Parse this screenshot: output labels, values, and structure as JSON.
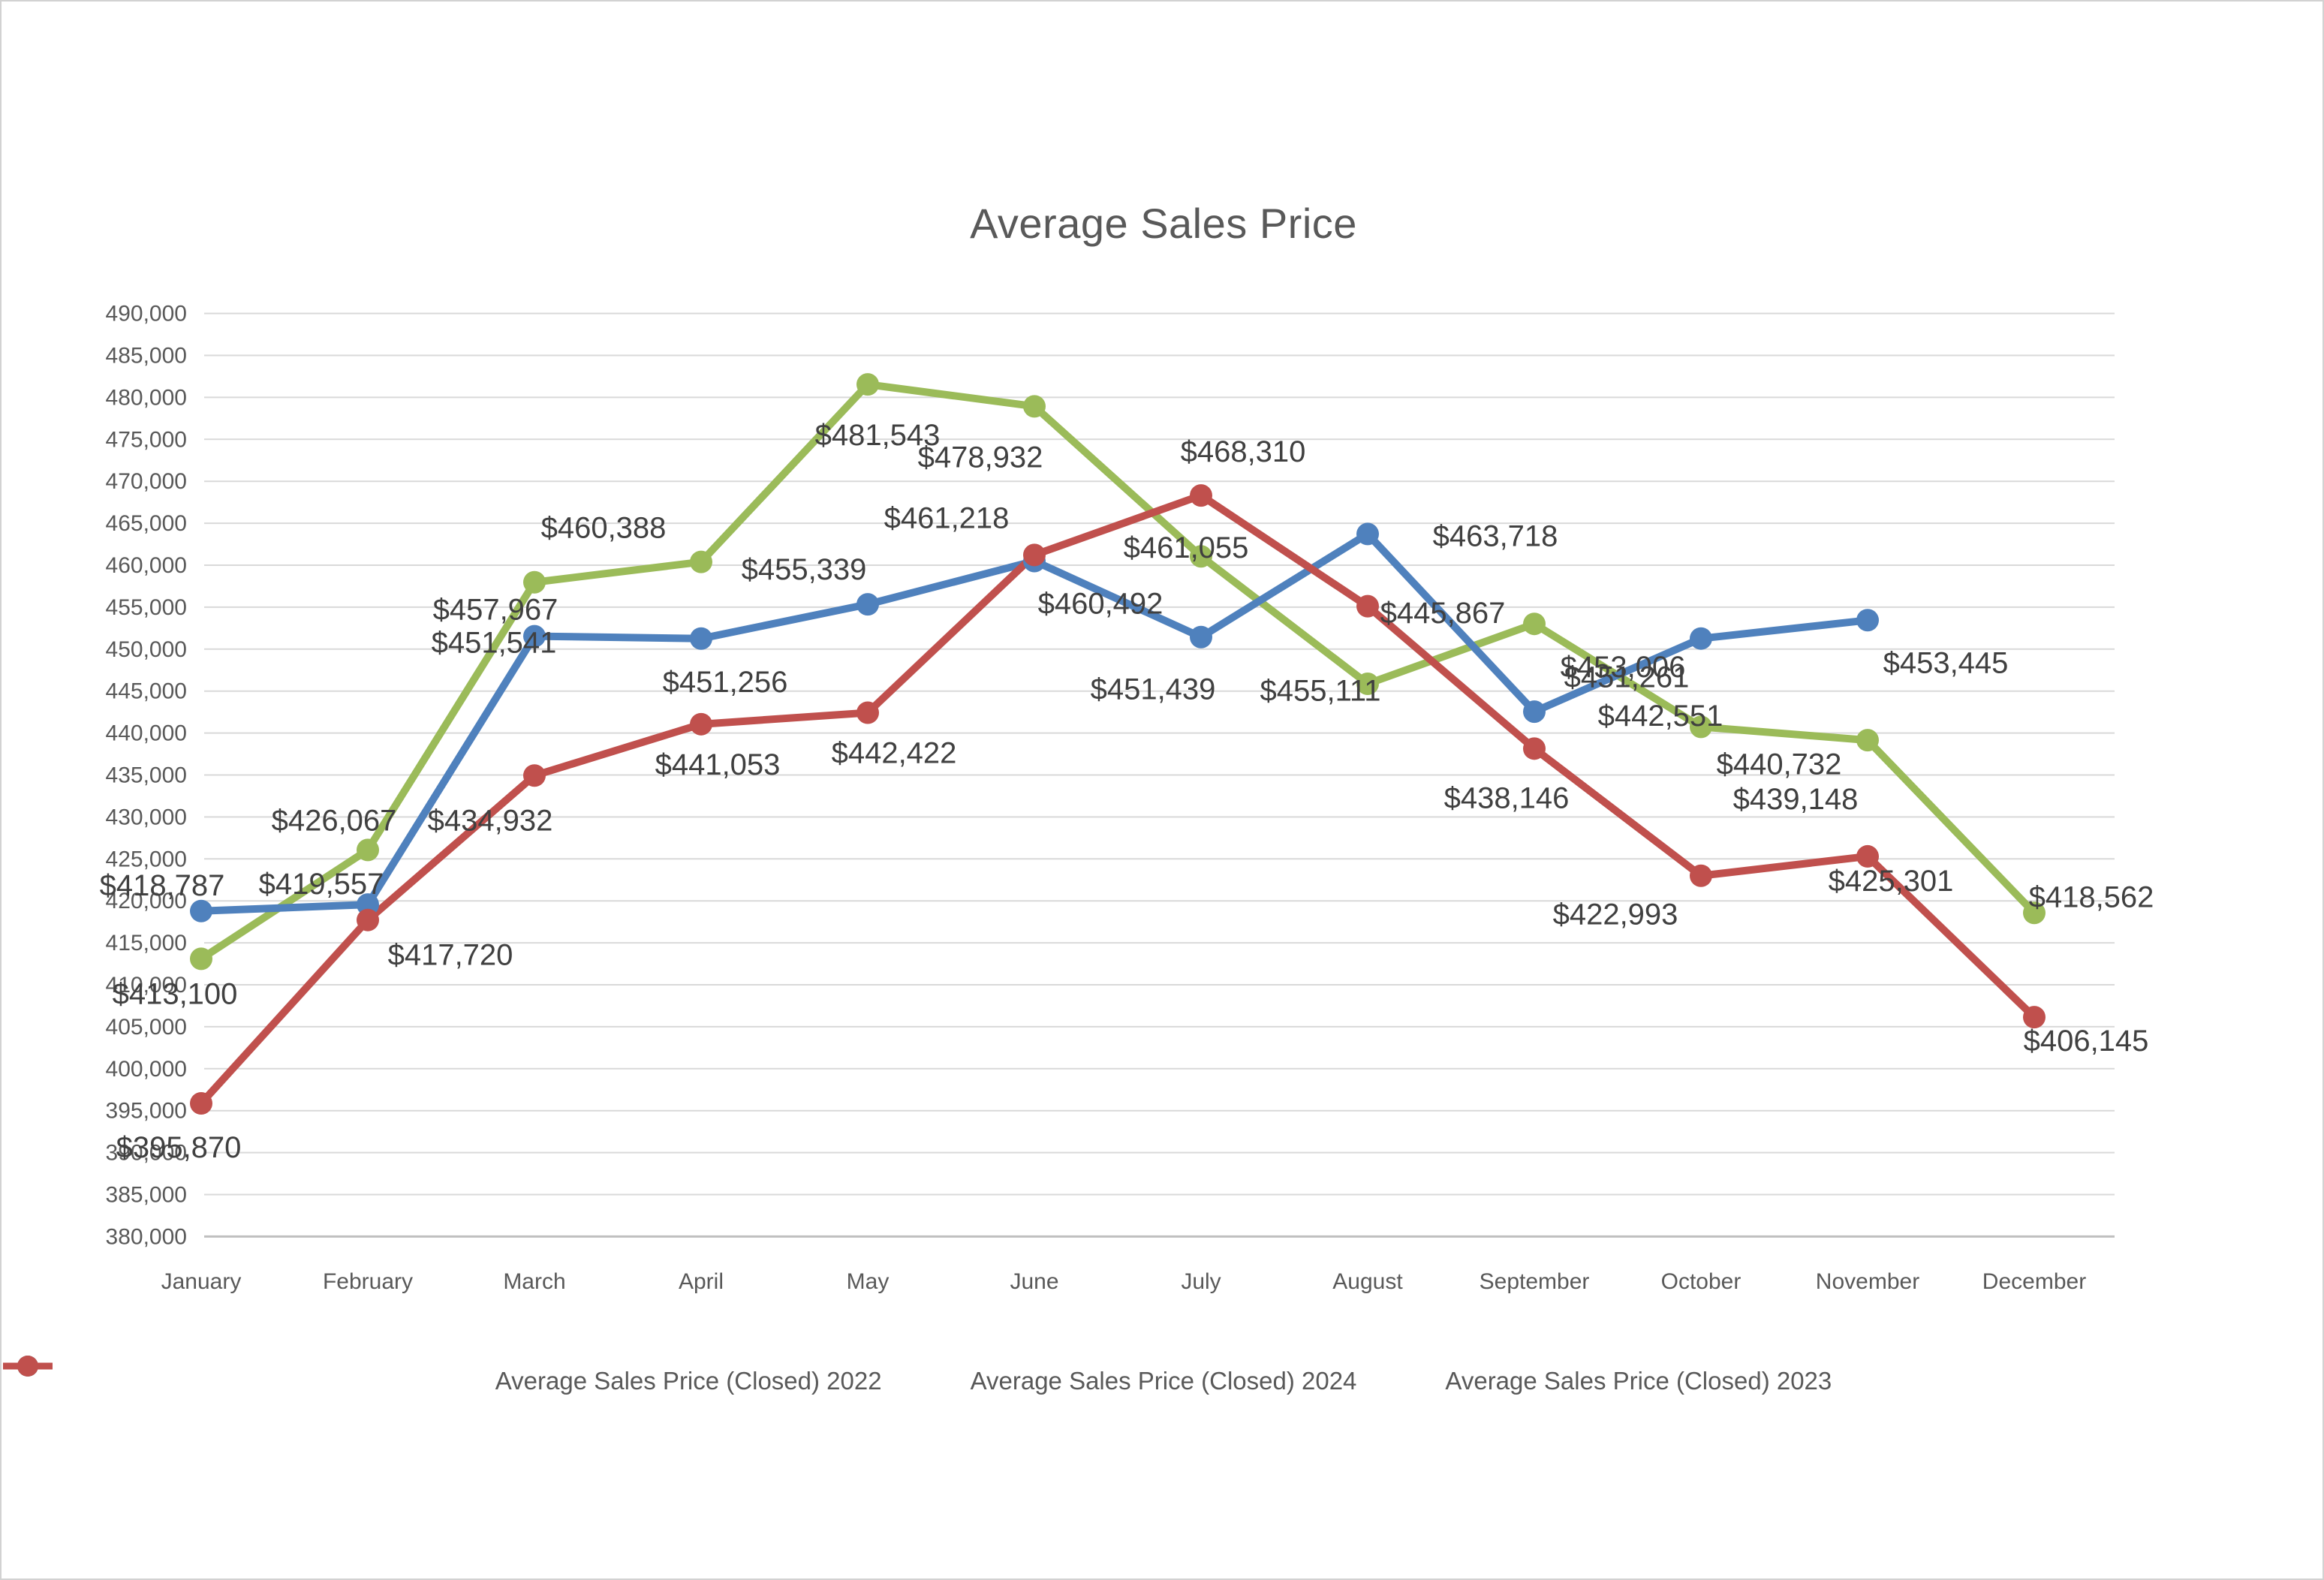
{
  "chart_data": {
    "type": "line",
    "title": "Average Sales Price",
    "categories": [
      "January",
      "February",
      "March",
      "April",
      "May",
      "June",
      "July",
      "August",
      "September",
      "October",
      "November",
      "December"
    ],
    "y_axis": {
      "min": 380000,
      "max": 490000,
      "step": 5000,
      "ticks": [
        "380,000",
        "385,000",
        "390,000",
        "395,000",
        "400,000",
        "405,000",
        "410,000",
        "415,000",
        "420,000",
        "425,000",
        "430,000",
        "435,000",
        "440,000",
        "445,000",
        "450,000",
        "455,000",
        "460,000",
        "465,000",
        "470,000",
        "475,000",
        "480,000",
        "485,000",
        "490,000"
      ]
    },
    "grid": true,
    "legend_position": "bottom",
    "series": [
      {
        "name": "Average Sales Price (Closed) 2022",
        "color": "#9BBB59",
        "values": [
          413100,
          426067,
          457967,
          460388,
          481543,
          478932,
          461055,
          445867,
          453006,
          440732,
          439148,
          418562
        ],
        "labels": [
          "$413,100",
          "$426,067",
          "$457,967",
          "$460,388",
          "$481,543",
          "$478,932",
          "$461,055",
          "$445,867",
          "$453,006",
          "$440,732",
          "$439,148",
          "$418,562"
        ],
        "label_offsets": [
          [
            -35,
            46
          ],
          [
            -45,
            -40
          ],
          [
            -52,
            36
          ],
          [
            -130,
            -46
          ],
          [
            13,
            67
          ],
          [
            -72,
            67
          ],
          [
            -20,
            -12
          ],
          [
            100,
            -95
          ],
          [
            118,
            57
          ],
          [
            104,
            49
          ],
          [
            -96,
            78
          ],
          [
            76,
            -22
          ]
        ]
      },
      {
        "name": "Average Sales Price (Closed) 2024",
        "color": "#4F81BD",
        "values": [
          418787,
          419557,
          451541,
          451256,
          455339,
          460492,
          451439,
          463718,
          442551,
          451261,
          453445,
          null
        ],
        "labels": [
          "$418,787",
          "$419,557",
          "$451,541",
          "$451,256",
          "$455,339",
          "$460,492",
          "$451,439",
          "$463,718",
          "$442,551",
          "$451,261",
          "$453,445",
          null
        ],
        "label_offsets": [
          [
            -52,
            -35
          ],
          [
            -62,
            -28
          ],
          [
            -54,
            8
          ],
          [
            32,
            57
          ],
          [
            -85,
            -47
          ],
          [
            88,
            56
          ],
          [
            -64,
            69
          ],
          [
            170,
            2
          ],
          [
            168,
            5
          ],
          [
            -99,
            51
          ],
          [
            104,
            56
          ],
          null
        ]
      },
      {
        "name": "Average Sales Price (Closed) 2023",
        "color": "#C0504D",
        "values": [
          395870,
          417720,
          434932,
          441053,
          442422,
          461218,
          468310,
          455111,
          438146,
          422993,
          425301,
          406145
        ],
        "labels": [
          "$395,870",
          "$417,720",
          "$434,932",
          "$441,053",
          "$442,422",
          "$461,218",
          "$468,310",
          "$455,111",
          "$438,146",
          "$422,993",
          "$425,301",
          "$406,145"
        ],
        "label_offsets": [
          [
            -30,
            58
          ],
          [
            110,
            46
          ],
          [
            -59,
            59
          ],
          [
            22,
            53
          ],
          [
            35,
            53
          ],
          [
            -117,
            -50
          ],
          [
            56,
            -59
          ],
          [
            -63,
            112
          ],
          [
            -37,
            65
          ],
          [
            -114,
            51
          ],
          [
            31,
            32
          ],
          [
            69,
            31
          ]
        ]
      }
    ],
    "style": {
      "gridline_color": "#D9D9D9",
      "axis_line_color": "#BFBFBF",
      "axis_label_color": "#595959",
      "data_label_color": "#404040",
      "title_color": "#595959",
      "background": "#FFFFFF"
    }
  }
}
